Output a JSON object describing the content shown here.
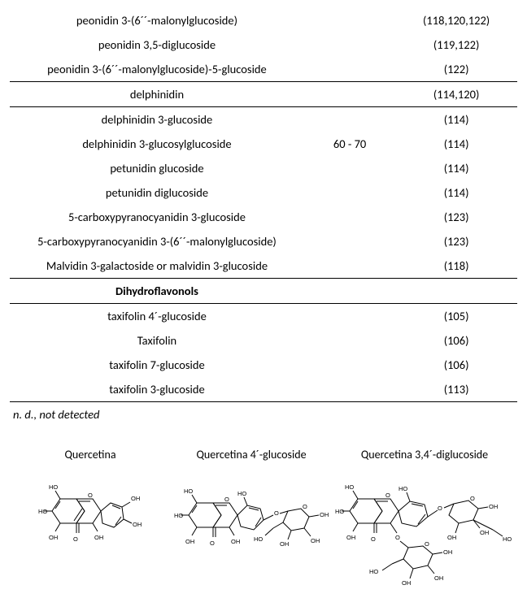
{
  "table": {
    "rows": [
      {
        "name": "peonidin 3-(6´´-malonylglucoside)",
        "mid": "",
        "ref": "(118,120,122)",
        "cls": ""
      },
      {
        "name": "peonidin 3,5-diglucoside",
        "mid": "",
        "ref": "(119,122)",
        "cls": ""
      },
      {
        "name": "peonidin 3-(6´´-malonylglucoside)-5-glucoside",
        "mid": "",
        "ref": "(122)",
        "cls": "hr-bot"
      },
      {
        "name": "delphinidin",
        "mid": "",
        "ref": "(114,120)",
        "cls": "hr-bot"
      },
      {
        "name": "delphinidin 3-glucoside",
        "mid": "",
        "ref": "(114)",
        "cls": ""
      },
      {
        "name": "delphinidin 3-glucosylglucoside",
        "mid": "60 - 70",
        "ref": "(114)",
        "cls": ""
      },
      {
        "name": "petunidin glucoside",
        "mid": "",
        "ref": "(114)",
        "cls": ""
      },
      {
        "name": "petunidin diglucoside",
        "mid": "",
        "ref": "(114)",
        "cls": ""
      },
      {
        "name": "5-carboxypyranocyanidin 3-glucoside",
        "mid": "",
        "ref": "(123)",
        "cls": ""
      },
      {
        "name": "5-carboxypyranocyanidin 3-(6´´-malonylglucoside)",
        "mid": "",
        "ref": "(123)",
        "cls": ""
      },
      {
        "name": "Malvidin 3-galactoside or malvidin 3-glucoside",
        "mid": "",
        "ref": "(118)",
        "cls": "hr-bot"
      },
      {
        "name": "Dihydroflavonols",
        "mid": "",
        "ref": "",
        "cls": "bold hr-bot"
      },
      {
        "name": "taxifolin 4´-glucoside",
        "mid": "",
        "ref": "(105)",
        "cls": ""
      },
      {
        "name": "Taxifolin",
        "mid": "",
        "ref": "(106)",
        "cls": ""
      },
      {
        "name": "taxifolin 7-glucoside",
        "mid": "",
        "ref": "(106)",
        "cls": ""
      },
      {
        "name": "taxifolin 3-glucoside",
        "mid": "",
        "ref": "(113)",
        "cls": "hr-bot"
      }
    ]
  },
  "footnote": "n. d., not detected",
  "molecules": [
    {
      "title": "Quercetina"
    },
    {
      "title": "Quercetina 4´-glucoside"
    },
    {
      "title": "Quercetina 3,4´-diglucoside"
    }
  ]
}
